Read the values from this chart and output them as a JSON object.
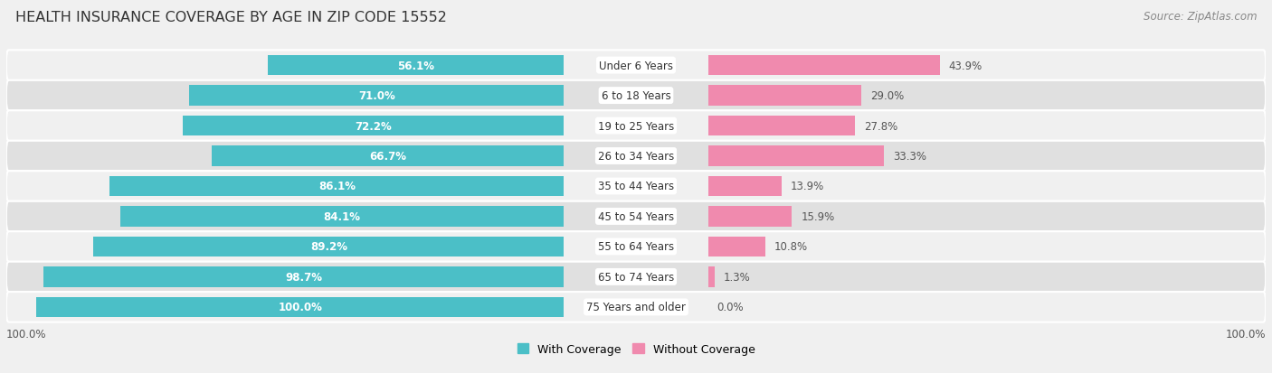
{
  "title": "HEALTH INSURANCE COVERAGE BY AGE IN ZIP CODE 15552",
  "source": "Source: ZipAtlas.com",
  "categories": [
    "Under 6 Years",
    "6 to 18 Years",
    "19 to 25 Years",
    "26 to 34 Years",
    "35 to 44 Years",
    "45 to 54 Years",
    "55 to 64 Years",
    "65 to 74 Years",
    "75 Years and older"
  ],
  "with_coverage": [
    56.1,
    71.0,
    72.2,
    66.7,
    86.1,
    84.1,
    89.2,
    98.7,
    100.0
  ],
  "without_coverage": [
    43.9,
    29.0,
    27.8,
    33.3,
    13.9,
    15.9,
    10.8,
    1.3,
    0.0
  ],
  "coverage_color": "#4BBFC7",
  "no_coverage_color": "#F08AAE",
  "bg_row_light": "#f0f0f0",
  "bg_row_dark": "#e0e0e0",
  "bg_color": "#f0f0f0",
  "title_fontsize": 11.5,
  "bar_label_fontsize": 8.5,
  "cat_label_fontsize": 8.5,
  "legend_fontsize": 9,
  "source_fontsize": 8.5,
  "axis_label_fontsize": 8.5
}
